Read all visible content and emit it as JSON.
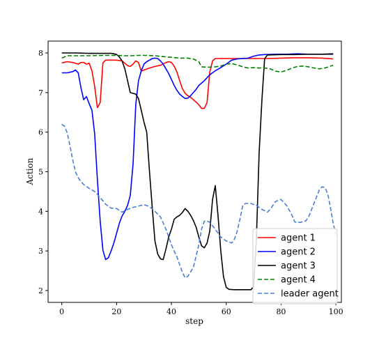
{
  "chart_data": {
    "type": "line",
    "xlabel": "step",
    "ylabel": "Action",
    "xlim": [
      -5,
      102
    ],
    "ylim": [
      1.7,
      8.3
    ],
    "x_ticks": [
      "0",
      "20",
      "40",
      "60",
      "80",
      "100"
    ],
    "y_ticks": [
      "2",
      "3",
      "4",
      "5",
      "6",
      "7",
      "8"
    ],
    "legend_position": "lower-right",
    "grid": false,
    "series": [
      {
        "name": "agent 1",
        "color": "#ff0000",
        "dash": "solid",
        "points": [
          [
            0,
            7.75
          ],
          [
            2,
            7.78
          ],
          [
            4,
            7.76
          ],
          [
            6,
            7.72
          ],
          [
            7,
            7.76
          ],
          [
            8,
            7.76
          ],
          [
            9,
            7.72
          ],
          [
            10,
            7.74
          ],
          [
            11,
            7.55
          ],
          [
            12,
            7.15
          ],
          [
            13,
            6.62
          ],
          [
            14,
            6.75
          ],
          [
            15,
            7.75
          ],
          [
            16,
            7.82
          ],
          [
            18,
            7.82
          ],
          [
            20,
            7.82
          ],
          [
            22,
            7.8
          ],
          [
            24,
            7.68
          ],
          [
            25,
            7.66
          ],
          [
            26,
            7.72
          ],
          [
            27,
            7.8
          ],
          [
            28,
            7.76
          ],
          [
            29,
            7.54
          ],
          [
            30,
            7.57
          ],
          [
            32,
            7.62
          ],
          [
            34,
            7.66
          ],
          [
            36,
            7.69
          ],
          [
            38,
            7.76
          ],
          [
            39,
            7.78
          ],
          [
            40,
            7.76
          ],
          [
            41,
            7.67
          ],
          [
            42,
            7.52
          ],
          [
            43,
            7.3
          ],
          [
            44,
            7.1
          ],
          [
            45,
            6.98
          ],
          [
            46,
            6.92
          ],
          [
            47,
            6.88
          ],
          [
            48,
            6.82
          ],
          [
            49,
            6.76
          ],
          [
            50,
            6.69
          ],
          [
            51,
            6.6
          ],
          [
            52,
            6.6
          ],
          [
            53,
            6.75
          ],
          [
            54,
            7.52
          ],
          [
            55,
            7.8
          ],
          [
            56,
            7.86
          ],
          [
            58,
            7.86
          ],
          [
            62,
            7.86
          ],
          [
            66,
            7.86
          ],
          [
            70,
            7.86
          ],
          [
            75,
            7.86
          ],
          [
            80,
            7.87
          ],
          [
            85,
            7.88
          ],
          [
            90,
            7.88
          ],
          [
            95,
            7.87
          ],
          [
            99,
            7.85
          ]
        ]
      },
      {
        "name": "agent 2",
        "color": "#0000ff",
        "dash": "solid",
        "points": [
          [
            0,
            7.5
          ],
          [
            2,
            7.5
          ],
          [
            4,
            7.53
          ],
          [
            5,
            7.57
          ],
          [
            6,
            7.5
          ],
          [
            7,
            7.12
          ],
          [
            8,
            6.82
          ],
          [
            9,
            6.9
          ],
          [
            10,
            6.72
          ],
          [
            11,
            6.55
          ],
          [
            12,
            5.95
          ],
          [
            13,
            4.8
          ],
          [
            14,
            3.75
          ],
          [
            15,
            3.02
          ],
          [
            16,
            2.78
          ],
          [
            17,
            2.83
          ],
          [
            18,
            3.0
          ],
          [
            19,
            3.2
          ],
          [
            20,
            3.45
          ],
          [
            21,
            3.7
          ],
          [
            22,
            3.88
          ],
          [
            23,
            4.0
          ],
          [
            24,
            4.15
          ],
          [
            25,
            4.4
          ],
          [
            26,
            5.2
          ],
          [
            27,
            6.7
          ],
          [
            28,
            7.3
          ],
          [
            29,
            7.55
          ],
          [
            30,
            7.72
          ],
          [
            31,
            7.78
          ],
          [
            32,
            7.82
          ],
          [
            33,
            7.86
          ],
          [
            34,
            7.87
          ],
          [
            35,
            7.86
          ],
          [
            36,
            7.8
          ],
          [
            37,
            7.72
          ],
          [
            38,
            7.6
          ],
          [
            39,
            7.48
          ],
          [
            40,
            7.33
          ],
          [
            41,
            7.18
          ],
          [
            42,
            7.06
          ],
          [
            43,
            6.96
          ],
          [
            44,
            6.9
          ],
          [
            45,
            6.85
          ],
          [
            46,
            6.86
          ],
          [
            47,
            6.92
          ],
          [
            48,
            7.0
          ],
          [
            49,
            7.08
          ],
          [
            50,
            7.18
          ],
          [
            52,
            7.3
          ],
          [
            54,
            7.45
          ],
          [
            56,
            7.55
          ],
          [
            58,
            7.63
          ],
          [
            60,
            7.72
          ],
          [
            62,
            7.82
          ],
          [
            64,
            7.85
          ],
          [
            66,
            7.86
          ],
          [
            68,
            7.87
          ],
          [
            70,
            7.92
          ],
          [
            72,
            7.95
          ],
          [
            74,
            7.96
          ],
          [
            78,
            7.97
          ],
          [
            82,
            7.97
          ],
          [
            86,
            7.98
          ],
          [
            90,
            7.97
          ],
          [
            95,
            7.97
          ],
          [
            99,
            7.97
          ]
        ]
      },
      {
        "name": "agent 3",
        "color": "#000000",
        "dash": "solid",
        "points": [
          [
            0,
            8.0
          ],
          [
            5,
            8.0
          ],
          [
            10,
            7.99
          ],
          [
            15,
            7.99
          ],
          [
            18,
            7.99
          ],
          [
            19,
            7.98
          ],
          [
            20,
            7.96
          ],
          [
            21,
            7.9
          ],
          [
            22,
            7.8
          ],
          [
            23,
            7.6
          ],
          [
            24,
            7.3
          ],
          [
            25,
            7.0
          ],
          [
            26,
            6.98
          ],
          [
            27,
            6.96
          ],
          [
            28,
            6.85
          ],
          [
            29,
            6.55
          ],
          [
            30,
            6.25
          ],
          [
            31,
            6.0
          ],
          [
            32,
            5.0
          ],
          [
            33,
            4.1
          ],
          [
            34,
            3.25
          ],
          [
            35,
            2.92
          ],
          [
            36,
            2.8
          ],
          [
            37,
            2.78
          ],
          [
            38,
            3.05
          ],
          [
            39,
            3.35
          ],
          [
            40,
            3.55
          ],
          [
            41,
            3.8
          ],
          [
            42,
            3.86
          ],
          [
            43,
            3.9
          ],
          [
            44,
            3.97
          ],
          [
            45,
            4.07
          ],
          [
            46,
            4.0
          ],
          [
            47,
            3.9
          ],
          [
            48,
            3.77
          ],
          [
            49,
            3.6
          ],
          [
            50,
            3.35
          ],
          [
            51,
            3.13
          ],
          [
            52,
            3.08
          ],
          [
            53,
            3.2
          ],
          [
            54,
            3.5
          ],
          [
            55,
            4.3
          ],
          [
            56,
            4.65
          ],
          [
            57,
            3.9
          ],
          [
            58,
            3.0
          ],
          [
            59,
            2.35
          ],
          [
            60,
            2.08
          ],
          [
            61,
            2.03
          ],
          [
            63,
            2.02
          ],
          [
            66,
            2.02
          ],
          [
            69,
            2.02
          ],
          [
            70,
            2.1
          ],
          [
            71,
            3.3
          ],
          [
            72,
            5.5
          ],
          [
            73,
            6.8
          ],
          [
            74,
            7.85
          ],
          [
            75,
            7.95
          ],
          [
            80,
            7.96
          ],
          [
            85,
            7.96
          ],
          [
            90,
            7.97
          ],
          [
            95,
            7.97
          ],
          [
            99,
            7.98
          ]
        ]
      },
      {
        "name": "agent 4",
        "color": "#008000",
        "dash": "dashed",
        "points": [
          [
            0,
            7.87
          ],
          [
            2,
            7.93
          ],
          [
            5,
            7.93
          ],
          [
            10,
            7.93
          ],
          [
            15,
            7.94
          ],
          [
            20,
            7.94
          ],
          [
            23,
            7.93
          ],
          [
            25,
            7.93
          ],
          [
            28,
            7.94
          ],
          [
            31,
            7.94
          ],
          [
            34,
            7.93
          ],
          [
            37,
            7.91
          ],
          [
            40,
            7.89
          ],
          [
            43,
            7.87
          ],
          [
            46,
            7.87
          ],
          [
            48,
            7.85
          ],
          [
            50,
            7.78
          ],
          [
            51,
            7.65
          ],
          [
            53,
            7.64
          ],
          [
            56,
            7.65
          ],
          [
            58,
            7.67
          ],
          [
            60,
            7.72
          ],
          [
            62,
            7.73
          ],
          [
            64,
            7.7
          ],
          [
            66,
            7.65
          ],
          [
            68,
            7.62
          ],
          [
            70,
            7.63
          ],
          [
            72,
            7.62
          ],
          [
            74,
            7.62
          ],
          [
            76,
            7.6
          ],
          [
            78,
            7.54
          ],
          [
            80,
            7.52
          ],
          [
            82,
            7.56
          ],
          [
            84,
            7.62
          ],
          [
            86,
            7.66
          ],
          [
            88,
            7.67
          ],
          [
            90,
            7.65
          ],
          [
            92,
            7.62
          ],
          [
            94,
            7.6
          ],
          [
            96,
            7.62
          ],
          [
            99,
            7.69
          ]
        ]
      },
      {
        "name": "leader agent",
        "color": "#4a7fd6",
        "dash": "dashed",
        "points": [
          [
            0,
            6.2
          ],
          [
            1,
            6.15
          ],
          [
            2,
            5.98
          ],
          [
            3,
            5.65
          ],
          [
            4,
            5.3
          ],
          [
            5,
            5.0
          ],
          [
            6,
            4.85
          ],
          [
            7,
            4.75
          ],
          [
            8,
            4.68
          ],
          [
            10,
            4.58
          ],
          [
            12,
            4.5
          ],
          [
            14,
            4.35
          ],
          [
            16,
            4.18
          ],
          [
            18,
            4.08
          ],
          [
            20,
            4.07
          ],
          [
            22,
            3.98
          ],
          [
            24,
            4.05
          ],
          [
            26,
            4.1
          ],
          [
            28,
            4.13
          ],
          [
            30,
            4.17
          ],
          [
            32,
            4.12
          ],
          [
            34,
            4.0
          ],
          [
            36,
            3.86
          ],
          [
            38,
            3.55
          ],
          [
            40,
            3.15
          ],
          [
            42,
            2.85
          ],
          [
            44,
            2.46
          ],
          [
            45,
            2.32
          ],
          [
            46,
            2.36
          ],
          [
            48,
            2.58
          ],
          [
            50,
            3.15
          ],
          [
            51,
            3.55
          ],
          [
            52,
            3.75
          ],
          [
            53,
            3.76
          ],
          [
            54,
            3.72
          ],
          [
            56,
            3.55
          ],
          [
            58,
            3.35
          ],
          [
            60,
            3.25
          ],
          [
            62,
            3.2
          ],
          [
            63,
            3.3
          ],
          [
            64,
            3.5
          ],
          [
            65,
            3.8
          ],
          [
            66,
            4.15
          ],
          [
            67,
            4.2
          ],
          [
            69,
            4.2
          ],
          [
            71,
            4.15
          ],
          [
            73,
            4.05
          ],
          [
            75,
            3.98
          ],
          [
            76,
            4.05
          ],
          [
            78,
            4.25
          ],
          [
            80,
            4.3
          ],
          [
            82,
            4.15
          ],
          [
            84,
            3.9
          ],
          [
            85,
            3.73
          ],
          [
            87,
            3.72
          ],
          [
            89,
            3.76
          ],
          [
            90,
            3.85
          ],
          [
            92,
            4.2
          ],
          [
            94,
            4.55
          ],
          [
            95,
            4.62
          ],
          [
            96,
            4.6
          ],
          [
            97,
            4.45
          ],
          [
            98,
            4.1
          ],
          [
            99,
            3.7
          ],
          [
            100,
            3.4
          ]
        ]
      }
    ]
  }
}
